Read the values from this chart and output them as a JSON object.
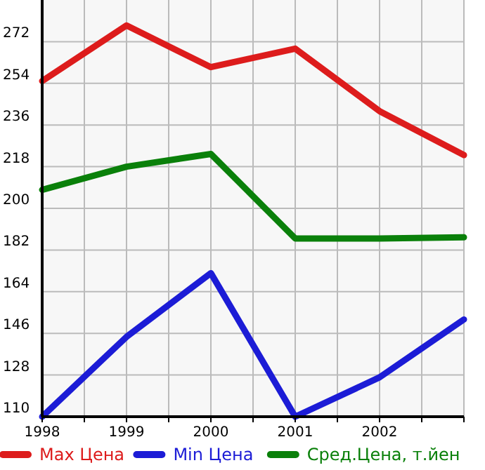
{
  "chart_data": {
    "type": "line",
    "x": [
      1998,
      1999,
      2000,
      2001,
      2002,
      2003
    ],
    "xlim": [
      1998,
      2003
    ],
    "xticks": [
      1998,
      {
        "value": 1998.5,
        "label": null
      },
      1999,
      {
        "value": 1999.5,
        "label": null
      },
      2000,
      {
        "value": 2000.5,
        "label": null
      },
      2001,
      {
        "value": 2001.5,
        "label": null
      },
      2002,
      {
        "value": 2002.5,
        "label": null
      },
      {
        "value": 2003,
        "label": null
      }
    ],
    "ylim": [
      110,
      290
    ],
    "yticks": [
      110,
      128,
      146,
      164,
      182,
      200,
      218,
      236,
      254,
      272
    ],
    "grid": true,
    "legend": "bottom",
    "line_style": "solid",
    "series": [
      {
        "name": "Max Цена",
        "color": "#dd1c1c",
        "values": [
          255,
          279,
          261,
          269,
          242,
          223
        ]
      },
      {
        "name": "Min Цена",
        "color": "#1c1cd6",
        "values": [
          110,
          144.5,
          172,
          110,
          127,
          152
        ]
      },
      {
        "name": "Сред.Цена, т.йен",
        "color": "#0a800a",
        "values": [
          208,
          218,
          223.5,
          187,
          187,
          187.5
        ]
      }
    ]
  }
}
